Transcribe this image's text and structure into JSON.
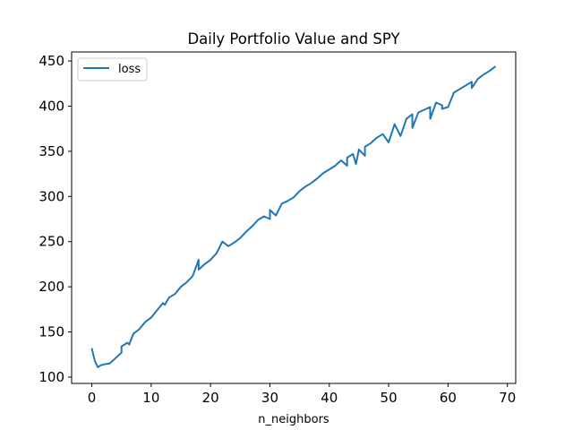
{
  "chart_data": {
    "type": "line",
    "title": "Daily Portfolio Value and SPY",
    "xlabel": "n_neighbors",
    "ylabel": "",
    "xlim": [
      -3.4,
      71.4
    ],
    "ylim": [
      93,
      460
    ],
    "xticks": [
      0,
      10,
      20,
      30,
      40,
      50,
      60,
      70
    ],
    "yticks": [
      100,
      150,
      200,
      250,
      300,
      350,
      400,
      450
    ],
    "grid": false,
    "legend_position": "upper left",
    "series": [
      {
        "name": "loss",
        "color": "#1f77b4",
        "x": [
          0,
          0.5,
          1,
          1.5,
          2,
          3,
          4,
          5,
          5,
          6,
          6.3,
          7,
          8,
          9,
          10,
          11,
          12,
          12.3,
          13,
          14,
          15,
          16,
          17,
          18,
          18,
          19,
          20,
          21,
          22,
          23,
          24,
          25,
          26,
          27,
          28,
          29,
          30,
          30,
          31,
          32,
          33,
          34,
          35,
          36,
          37,
          38,
          39,
          40,
          41,
          42,
          43,
          43,
          44,
          44.5,
          45,
          46,
          46,
          47,
          48,
          49,
          50,
          51,
          52,
          53,
          54,
          54,
          55,
          56,
          57,
          57,
          58,
          59,
          59,
          60,
          61,
          62,
          63,
          64,
          64,
          65,
          66,
          67,
          68
        ],
        "y": [
          132,
          118,
          111,
          113,
          114,
          115,
          121,
          127,
          134,
          138,
          136,
          148,
          153,
          161,
          166,
          174,
          182,
          180,
          188,
          192,
          200,
          205,
          212,
          230,
          219,
          225,
          230,
          237,
          250,
          245,
          249,
          254,
          261,
          267,
          274,
          278,
          275,
          285,
          279,
          292,
          295,
          299,
          306,
          311,
          315,
          320,
          326,
          330,
          334,
          340,
          334,
          343,
          347,
          336,
          352,
          345,
          355,
          359,
          365,
          369,
          360,
          380,
          367,
          386,
          391,
          376,
          393,
          396,
          399,
          386,
          404,
          401,
          397,
          399,
          415,
          419,
          423,
          427,
          420,
          430,
          435,
          439,
          444
        ]
      }
    ]
  }
}
